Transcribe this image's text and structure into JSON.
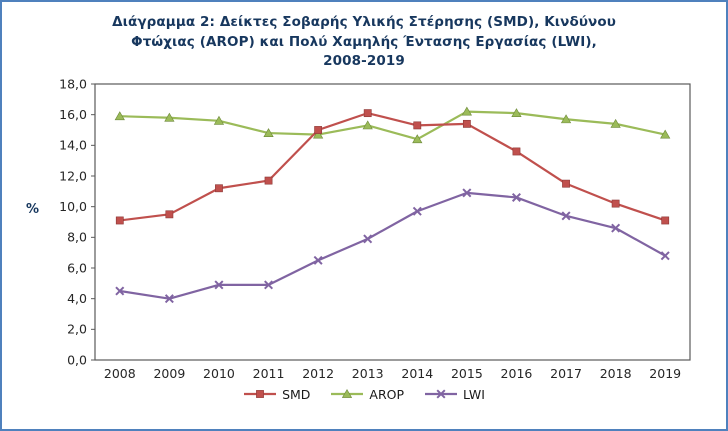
{
  "frame": {
    "border_color": "#4f81bd"
  },
  "chart_data": {
    "type": "line",
    "title": "Διάγραμμα 2: Δείκτες Σοβαρής Υλικής Στέρησης (SMD), Κινδύνου Φτώχιας (AROP) και Πολύ Χαμηλής Έντασης Εργασίας (LWI), 2008-2019",
    "title_lines": [
      "Διάγραμμα  2: Δείκτες Σοβαρής Υλικής Στέρησης (SMD), Κινδύνου",
      "Φτώχιας (AROP) και Πολύ Χαμηλής Έντασης Εργασίας (LWI),",
      "2008-2019"
    ],
    "ylabel": "%",
    "xlabel": "",
    "ylim": [
      0,
      18
    ],
    "ytick_step": 2,
    "decimal_separator": ",",
    "grid": false,
    "legend_position": "bottom",
    "categories": [
      "2008",
      "2009",
      "2010",
      "2011",
      "2012",
      "2013",
      "2014",
      "2015",
      "2016",
      "2017",
      "2018",
      "2019"
    ],
    "series": [
      {
        "name": "SMD",
        "color": "#c0504d",
        "marker": "square",
        "values": [
          9.1,
          9.5,
          11.2,
          11.7,
          15.0,
          16.1,
          15.3,
          15.4,
          13.6,
          11.5,
          10.2,
          9.1
        ]
      },
      {
        "name": "AROP",
        "color": "#9bbb59",
        "marker": "triangle",
        "values": [
          15.9,
          15.8,
          15.6,
          14.8,
          14.7,
          15.3,
          14.4,
          16.2,
          16.1,
          15.7,
          15.4,
          14.7
        ]
      },
      {
        "name": "LWI",
        "color": "#8064a2",
        "marker": "x",
        "values": [
          4.5,
          4.0,
          4.9,
          4.9,
          6.5,
          7.9,
          9.7,
          10.9,
          10.6,
          9.4,
          8.6,
          6.8
        ]
      }
    ]
  }
}
